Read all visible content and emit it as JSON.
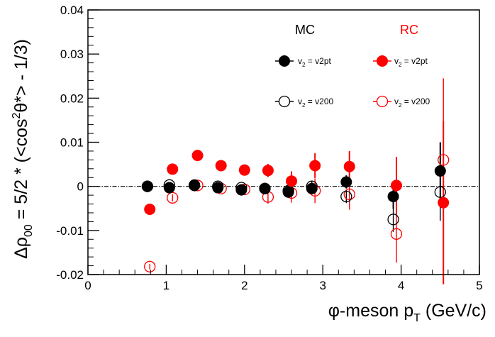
{
  "chart_data": {
    "type": "scatter",
    "xlabel_main": "φ-meson p",
    "xlabel_sub": "T",
    "xlabel_unit": " (GeV/c)",
    "ylabel_rho": "Δρ",
    "ylabel_sub": "00",
    "ylabel_expr1": " = 5/2 * (<cos",
    "ylabel_sup": "2",
    "ylabel_expr2": "θ*> - 1/3)",
    "xlim": [
      0,
      5
    ],
    "ylim": [
      -0.02,
      0.04
    ],
    "xticks": [
      "0",
      "1",
      "2",
      "3",
      "4",
      "5"
    ],
    "yticks": [
      "-0.02",
      "-0.01",
      "0",
      "0.01",
      "0.02",
      "0.03",
      "0.04"
    ],
    "x_tick_values": [
      0,
      1,
      2,
      3,
      4,
      5
    ],
    "y_tick_values": [
      -0.02,
      -0.01,
      0,
      0.01,
      0.02,
      0.03,
      0.04
    ],
    "legend": {
      "mc_title": "MC",
      "rc_title": "RC",
      "v2pt": "v2pt",
      "v200": "v200",
      "v_label": "v",
      "v_sub": "2",
      "equals": " = "
    },
    "colors": {
      "mc": "#000000",
      "rc": "#ff0000"
    },
    "series": [
      {
        "key": "mc_v2pt",
        "marker": "filled",
        "color": "#000000",
        "x": [
          0.76,
          1.04,
          1.36,
          1.66,
          1.96,
          2.26,
          2.56,
          2.86,
          3.3,
          3.9,
          4.5
        ],
        "y": [
          0.0,
          -0.0003,
          0.0003,
          -0.0003,
          -0.0008,
          -0.0005,
          -0.0013,
          -0.0005,
          0.001,
          -0.0023,
          0.0035
        ],
        "err": [
          0.0005,
          0.0007,
          0.0007,
          0.0007,
          0.0008,
          0.0009,
          0.0012,
          0.0012,
          0.0015,
          0.0028,
          0.0065
        ]
      },
      {
        "key": "mc_v200",
        "marker": "open",
        "color": "#000000",
        "x": [
          0.76,
          1.04,
          1.36,
          1.66,
          1.96,
          2.26,
          2.56,
          2.86,
          3.3,
          3.9,
          4.5
        ],
        "y": [
          0.0,
          0.0003,
          0.0002,
          0.0,
          -0.0003,
          -0.0005,
          -0.001,
          0.0,
          -0.0023,
          -0.0075,
          -0.0013
        ],
        "err": [
          0.0005,
          0.0007,
          0.0007,
          0.0007,
          0.0008,
          0.0009,
          0.0012,
          0.0012,
          0.0015,
          0.0028,
          0.0065
        ]
      },
      {
        "key": "rc_v2pt",
        "marker": "filled",
        "color": "#ff0000",
        "x": [
          0.79,
          1.08,
          1.4,
          1.7,
          2.0,
          2.3,
          2.6,
          2.9,
          3.34,
          3.94,
          4.54
        ],
        "y": [
          -0.0052,
          0.0039,
          0.007,
          0.0047,
          0.0037,
          0.0036,
          0.0012,
          0.0047,
          0.0045,
          0.0002,
          -0.0037
        ],
        "err": [
          0.0006,
          0.0008,
          0.0009,
          0.001,
          0.0012,
          0.0015,
          0.0022,
          0.0028,
          0.0035,
          0.0065,
          0.0185
        ]
      },
      {
        "key": "rc_v200",
        "marker": "open",
        "color": "#ff0000",
        "x": [
          0.79,
          1.08,
          1.4,
          1.7,
          2.0,
          2.3,
          2.6,
          2.9,
          3.34,
          3.94,
          4.54
        ],
        "y": [
          -0.0182,
          -0.0026,
          0.0002,
          -0.0005,
          -0.0007,
          -0.0024,
          -0.0015,
          -0.001,
          -0.0018,
          -0.0108,
          0.006
        ],
        "err": [
          0.0006,
          0.0008,
          0.0009,
          0.001,
          0.0012,
          0.0015,
          0.0022,
          0.0028,
          0.0035,
          0.0065,
          0.0185
        ]
      }
    ]
  }
}
